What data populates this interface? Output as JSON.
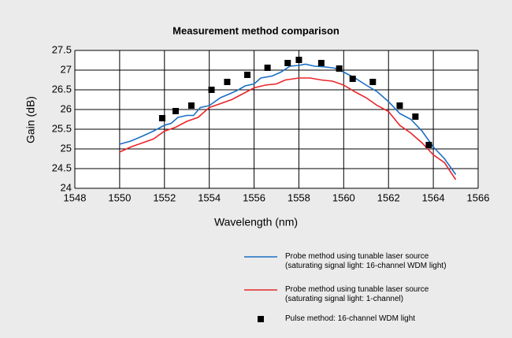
{
  "chart_data": {
    "type": "line",
    "title": "Measurement method comparison",
    "x_label": "Wavelength (nm)",
    "y_label": "Gain (dB)",
    "xlim": [
      1548,
      1566
    ],
    "xticks": [
      1548,
      1550,
      1552,
      1554,
      1556,
      1558,
      1560,
      1562,
      1564,
      1566
    ],
    "ylim": [
      24,
      27.5
    ],
    "yticks": [
      24,
      24.5,
      25,
      25.5,
      26,
      26.5,
      27,
      27.5
    ],
    "grid": true,
    "series": [
      {
        "name": "Probe method using tunable laser source\n(saturating signal light: 16-channel WDM light)",
        "type": "line",
        "color": "#1a6fc4",
        "x": [
          1550,
          1550.5,
          1551,
          1551.5,
          1552,
          1552.3,
          1552.6,
          1553,
          1553.3,
          1553.6,
          1554,
          1554.5,
          1555,
          1555.3,
          1555.6,
          1556,
          1556.3,
          1556.8,
          1557.2,
          1557.6,
          1558,
          1558.3,
          1558.7,
          1559.2,
          1559.6,
          1560,
          1560.5,
          1561,
          1561.5,
          1562,
          1562.5,
          1563,
          1563.5,
          1564,
          1564.5,
          1565
        ],
        "values": [
          25.12,
          25.2,
          25.32,
          25.45,
          25.6,
          25.65,
          25.8,
          25.85,
          25.85,
          26.05,
          26.1,
          26.3,
          26.42,
          26.5,
          26.6,
          26.65,
          26.8,
          26.85,
          26.95,
          27.1,
          27.12,
          27.15,
          27.1,
          27.08,
          27.05,
          26.95,
          26.8,
          26.62,
          26.45,
          26.2,
          25.9,
          25.75,
          25.45,
          25.05,
          24.75,
          24.35
        ]
      },
      {
        "name": "Probe method using tunable laser source\n(saturating signal light: 1-channel)",
        "type": "line",
        "color": "#e8262a",
        "x": [
          1550,
          1550.5,
          1551,
          1551.5,
          1552,
          1552.5,
          1553,
          1553.5,
          1554,
          1554.5,
          1555,
          1555.5,
          1556,
          1556.5,
          1557,
          1557.4,
          1558,
          1558.5,
          1559,
          1559.5,
          1560,
          1560.5,
          1561,
          1561.5,
          1562,
          1562.5,
          1563,
          1563.5,
          1564,
          1564.5,
          1565
        ],
        "values": [
          24.92,
          25.05,
          25.15,
          25.25,
          25.45,
          25.55,
          25.7,
          25.8,
          26.05,
          26.15,
          26.25,
          26.4,
          26.55,
          26.62,
          26.65,
          26.75,
          26.8,
          26.8,
          26.75,
          26.72,
          26.62,
          26.45,
          26.3,
          26.1,
          25.95,
          25.6,
          25.4,
          25.15,
          24.85,
          24.65,
          24.22
        ]
      },
      {
        "name": "Pulse method: 16-channel WDM light",
        "type": "scatter",
        "color": "#000000",
        "x": [
          1551.9,
          1552.5,
          1553.2,
          1554.1,
          1554.8,
          1555.7,
          1556.6,
          1557.5,
          1558,
          1559,
          1559.8,
          1560.4,
          1561.3,
          1562.5,
          1563.2,
          1563.8
        ],
        "values": [
          25.78,
          25.96,
          26.1,
          26.5,
          26.7,
          26.88,
          27.06,
          27.18,
          27.26,
          27.18,
          27.04,
          26.78,
          26.7,
          26.1,
          25.82,
          25.1
        ]
      }
    ]
  }
}
